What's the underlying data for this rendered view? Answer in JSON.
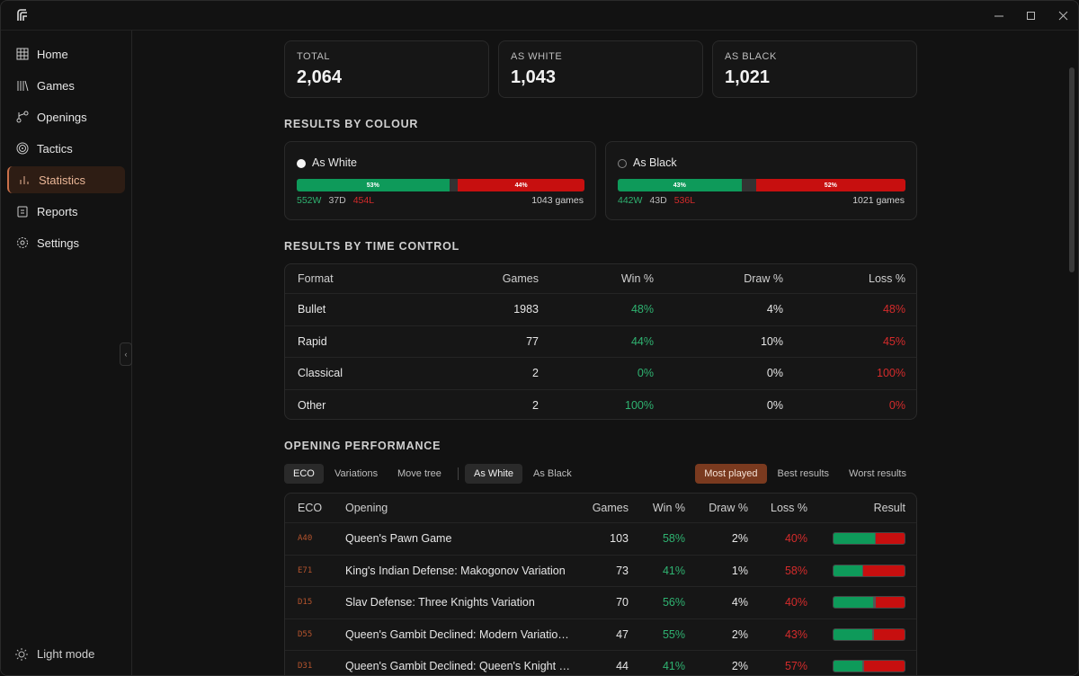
{
  "sidebar": {
    "nav": [
      {
        "label": "Home",
        "active": false
      },
      {
        "label": "Games",
        "active": false
      },
      {
        "label": "Openings",
        "active": false
      },
      {
        "label": "Tactics",
        "active": false
      },
      {
        "label": "Statistics",
        "active": true
      },
      {
        "label": "Reports",
        "active": false
      },
      {
        "label": "Settings",
        "active": false
      }
    ],
    "footer": "Light mode"
  },
  "summary": [
    {
      "label": "TOTAL",
      "value": "2,064"
    },
    {
      "label": "AS WHITE",
      "value": "1,043"
    },
    {
      "label": "AS BLACK",
      "value": "1,021"
    }
  ],
  "colour": {
    "title": "RESULTS BY COLOUR",
    "cards": [
      {
        "label": "As White",
        "marker": "white",
        "win_pct": 53,
        "win_pct_label": "53%",
        "loss_pct": 44,
        "loss_pct_label": "44%",
        "wins": "552W",
        "draws": "37D",
        "losses": "454L",
        "games": "1043 games"
      },
      {
        "label": "As Black",
        "marker": "black",
        "win_pct": 43,
        "win_pct_label": "43%",
        "loss_pct": 52,
        "loss_pct_label": "52%",
        "wins": "442W",
        "draws": "43D",
        "losses": "536L",
        "games": "1021 games"
      }
    ]
  },
  "time_control": {
    "title": "RESULTS BY TIME CONTROL",
    "header": [
      "Format",
      "Games",
      "Win %",
      "Draw %",
      "Loss %"
    ],
    "rows": [
      [
        "Bullet",
        "1983",
        "48%",
        "4%",
        "48%"
      ],
      [
        "Rapid",
        "77",
        "44%",
        "10%",
        "45%"
      ],
      [
        "Classical",
        "2",
        "0%",
        "0%",
        "100%"
      ],
      [
        "Other",
        "2",
        "100%",
        "0%",
        "0%"
      ]
    ]
  },
  "openings": {
    "title": "OPENING PERFORMANCE",
    "view_tabs": [
      {
        "label": "ECO",
        "active": true
      },
      {
        "label": "Variations",
        "active": false
      },
      {
        "label": "Move tree",
        "active": false
      }
    ],
    "colour_tabs": [
      {
        "label": "As White",
        "active": true
      },
      {
        "label": "As Black",
        "active": false
      }
    ],
    "sort_tabs": [
      {
        "label": "Most played",
        "active": true
      },
      {
        "label": "Best results",
        "active": false
      },
      {
        "label": "Worst results",
        "active": false
      }
    ],
    "header": [
      "ECO",
      "Opening",
      "Games",
      "Win %",
      "Draw %",
      "Loss %",
      "Result"
    ],
    "rows": [
      {
        "eco": "A40",
        "opening": "Queen's Pawn Game",
        "games": "103",
        "win": {
          "value": 58,
          "label": "58%"
        },
        "draw": {
          "value": 2,
          "label": "2%"
        },
        "loss": {
          "value": 40,
          "label": "40%"
        }
      },
      {
        "eco": "E71",
        "opening": "King's Indian Defense: Makogonov Variation",
        "games": "73",
        "win": {
          "value": 41,
          "label": "41%"
        },
        "draw": {
          "value": 1,
          "label": "1%"
        },
        "loss": {
          "value": 58,
          "label": "58%"
        }
      },
      {
        "eco": "D15",
        "opening": "Slav Defense: Three Knights Variation",
        "games": "70",
        "win": {
          "value": 56,
          "label": "56%"
        },
        "draw": {
          "value": 4,
          "label": "4%"
        },
        "loss": {
          "value": 40,
          "label": "40%"
        }
      },
      {
        "eco": "D55",
        "opening": "Queen's Gambit Declined: Modern Variatio…",
        "games": "47",
        "win": {
          "value": 55,
          "label": "55%"
        },
        "draw": {
          "value": 2,
          "label": "2%"
        },
        "loss": {
          "value": 43,
          "label": "43%"
        }
      },
      {
        "eco": "D31",
        "opening": "Queen's Gambit Declined: Queen's Knight …",
        "games": "44",
        "win": {
          "value": 41,
          "label": "41%"
        },
        "draw": {
          "value": 2,
          "label": "2%"
        },
        "loss": {
          "value": 57,
          "label": "57%"
        }
      }
    ]
  }
}
